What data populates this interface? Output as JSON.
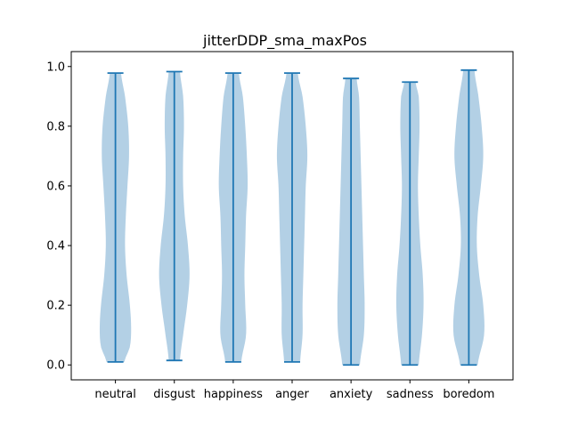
{
  "chart_data": {
    "type": "violin",
    "title": "jitterDDP_sma_maxPos",
    "xlabel": "",
    "ylabel": "",
    "ylim": [
      -0.05,
      1.05
    ],
    "yticks": [
      "0.0",
      "0.2",
      "0.4",
      "0.6",
      "0.8",
      "1.0"
    ],
    "grid": false,
    "colors": {
      "body": "#a6c8e0",
      "line": "#1f77b4"
    },
    "categories": [
      "neutral",
      "disgust",
      "happiness",
      "anger",
      "anxiety",
      "sadness",
      "boredom"
    ],
    "violins": [
      {
        "name": "neutral",
        "min": 0.01,
        "max": 0.978,
        "profile": [
          [
            0.01,
            0.55
          ],
          [
            0.06,
            0.9
          ],
          [
            0.12,
            0.98
          ],
          [
            0.2,
            0.9
          ],
          [
            0.3,
            0.7
          ],
          [
            0.4,
            0.6
          ],
          [
            0.5,
            0.65
          ],
          [
            0.6,
            0.75
          ],
          [
            0.7,
            0.85
          ],
          [
            0.8,
            0.8
          ],
          [
            0.9,
            0.6
          ],
          [
            0.978,
            0.35
          ]
        ]
      },
      {
        "name": "disgust",
        "min": 0.015,
        "max": 0.983,
        "profile": [
          [
            0.015,
            0.35
          ],
          [
            0.1,
            0.55
          ],
          [
            0.2,
            0.8
          ],
          [
            0.3,
            0.95
          ],
          [
            0.4,
            0.85
          ],
          [
            0.5,
            0.65
          ],
          [
            0.6,
            0.55
          ],
          [
            0.7,
            0.55
          ],
          [
            0.8,
            0.6
          ],
          [
            0.9,
            0.55
          ],
          [
            0.983,
            0.35
          ]
        ]
      },
      {
        "name": "happiness",
        "min": 0.01,
        "max": 0.978,
        "profile": [
          [
            0.01,
            0.5
          ],
          [
            0.1,
            0.8
          ],
          [
            0.2,
            0.75
          ],
          [
            0.3,
            0.7
          ],
          [
            0.4,
            0.75
          ],
          [
            0.5,
            0.8
          ],
          [
            0.6,
            0.9
          ],
          [
            0.7,
            0.85
          ],
          [
            0.8,
            0.75
          ],
          [
            0.9,
            0.6
          ],
          [
            0.978,
            0.35
          ]
        ]
      },
      {
        "name": "anger",
        "min": 0.01,
        "max": 0.978,
        "profile": [
          [
            0.01,
            0.5
          ],
          [
            0.1,
            0.65
          ],
          [
            0.2,
            0.65
          ],
          [
            0.3,
            0.7
          ],
          [
            0.4,
            0.75
          ],
          [
            0.5,
            0.8
          ],
          [
            0.6,
            0.85
          ],
          [
            0.7,
            0.95
          ],
          [
            0.8,
            0.85
          ],
          [
            0.9,
            0.65
          ],
          [
            0.978,
            0.35
          ]
        ]
      },
      {
        "name": "anxiety",
        "min": 0.0,
        "max": 0.96,
        "profile": [
          [
            0.0,
            0.55
          ],
          [
            0.1,
            0.8
          ],
          [
            0.2,
            0.85
          ],
          [
            0.3,
            0.8
          ],
          [
            0.4,
            0.75
          ],
          [
            0.5,
            0.7
          ],
          [
            0.6,
            0.65
          ],
          [
            0.7,
            0.6
          ],
          [
            0.8,
            0.55
          ],
          [
            0.9,
            0.5
          ],
          [
            0.96,
            0.35
          ]
        ]
      },
      {
        "name": "sadness",
        "min": 0.0,
        "max": 0.948,
        "profile": [
          [
            0.0,
            0.55
          ],
          [
            0.1,
            0.75
          ],
          [
            0.2,
            0.85
          ],
          [
            0.3,
            0.8
          ],
          [
            0.4,
            0.65
          ],
          [
            0.5,
            0.55
          ],
          [
            0.6,
            0.5
          ],
          [
            0.7,
            0.55
          ],
          [
            0.8,
            0.6
          ],
          [
            0.9,
            0.55
          ],
          [
            0.948,
            0.35
          ]
        ]
      },
      {
        "name": "boredom",
        "min": 0.0,
        "max": 0.988,
        "profile": [
          [
            0.0,
            0.55
          ],
          [
            0.1,
            0.95
          ],
          [
            0.2,
            0.9
          ],
          [
            0.3,
            0.65
          ],
          [
            0.4,
            0.5
          ],
          [
            0.5,
            0.55
          ],
          [
            0.6,
            0.75
          ],
          [
            0.7,
            0.9
          ],
          [
            0.8,
            0.8
          ],
          [
            0.9,
            0.6
          ],
          [
            0.988,
            0.35
          ]
        ]
      }
    ]
  }
}
